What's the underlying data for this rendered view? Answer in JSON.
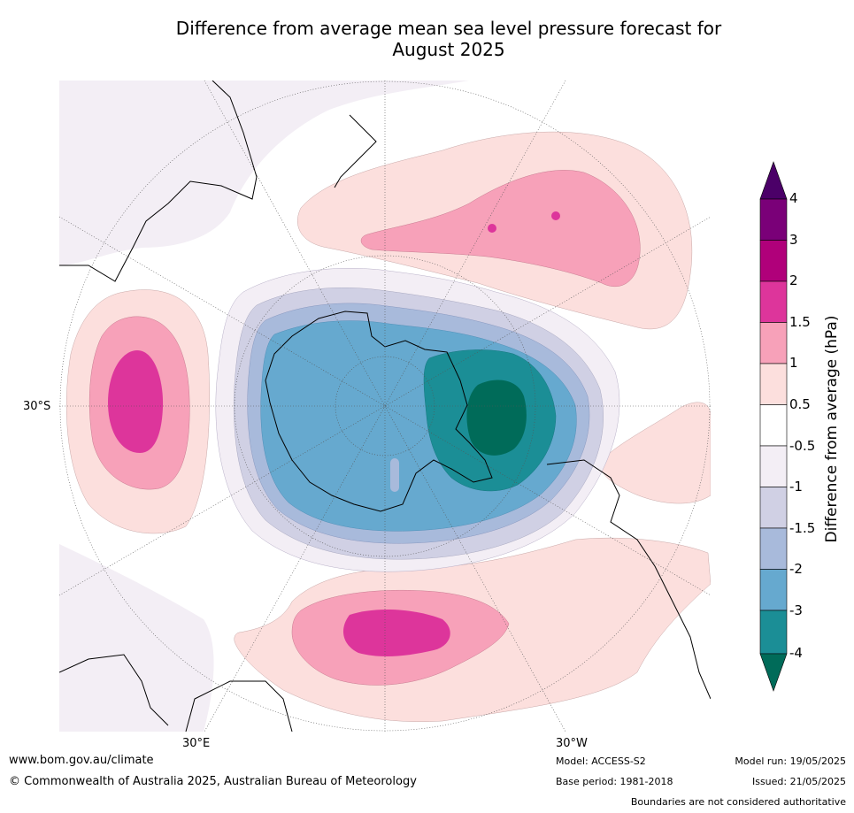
{
  "title": {
    "line1": "Difference from average mean sea level pressure forecast for",
    "line2": "August 2025"
  },
  "map": {
    "projection": "south polar stereographic",
    "lat_labels": [
      "30°S"
    ],
    "lon_labels": [
      "30°E",
      "30°W"
    ]
  },
  "colorbar": {
    "title": "Difference from average (hPa)",
    "ticks": [
      "4",
      "3",
      "2",
      "1.5",
      "1",
      "0.5",
      "-0.5",
      "-1",
      "-1.5",
      "-2",
      "-3",
      "-4"
    ],
    "colors": {
      "gt4": "#4b0068",
      "3_4": "#7a0078",
      "2_3": "#b0007a",
      "1.5_2": "#dd359b",
      "1_1.5": "#f7a1b9",
      "0.5_1": "#fcdfdd",
      "neutral": "#ffffff",
      "m1_m0.5": "#f3eef5",
      "m1.5_m1": "#d0d0e4",
      "m2_m1.5": "#a8badb",
      "m3_m2": "#66a9cf",
      "m4_m3": "#1b8e96",
      "lt_m4": "#006b59"
    }
  },
  "footer": {
    "website": "www.bom.gov.au/climate",
    "copyright": "© Commonwealth of Australia 2025, Australian Bureau of Meteorology",
    "model": "Model: ACCESS-S2",
    "base_period": "Base period: 1981-2018",
    "model_run": "Model run: 19/05/2025",
    "issued": "Issued: 21/05/2025",
    "disclaimer": "Boundaries are not considered authoritative"
  }
}
